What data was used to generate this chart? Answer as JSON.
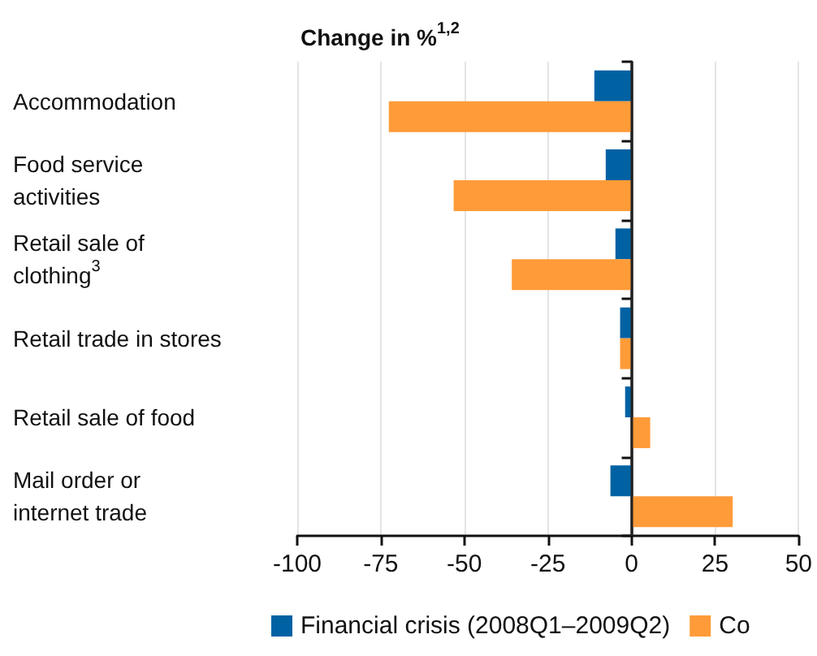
{
  "chart_data": {
    "type": "bar",
    "orientation": "horizontal",
    "xlabel": "Change in %$^{1,2}$",
    "categories": [
      "Accommodation",
      "Food service\nactivities",
      "Retail sale of\nclothing$^{3}$",
      "Retail trade in stores",
      "Retail sale of food",
      "Mail order or\ninternet trade"
    ],
    "series": [
      {
        "name": "Financial crisis (2008Q1–2009Q2)",
        "color": "#0062a3",
        "values": [
          -11.1,
          -7.7,
          -4.8,
          -3.4,
          -1.9,
          -6.3
        ]
      },
      {
        "name": "Co",
        "color": "#ff9b38",
        "values": [
          -72.6,
          -53.2,
          -35.8,
          -3.4,
          5.6,
          30.3
        ]
      }
    ],
    "xlim": [
      -100,
      50
    ],
    "xticks": [
      -100,
      -75,
      -50,
      -25,
      0,
      25,
      50
    ],
    "grid": "x",
    "legend": "bottom",
    "ref_lines": [
      {
        "axis": "x",
        "value": 0,
        "color": "#222222"
      }
    ]
  }
}
